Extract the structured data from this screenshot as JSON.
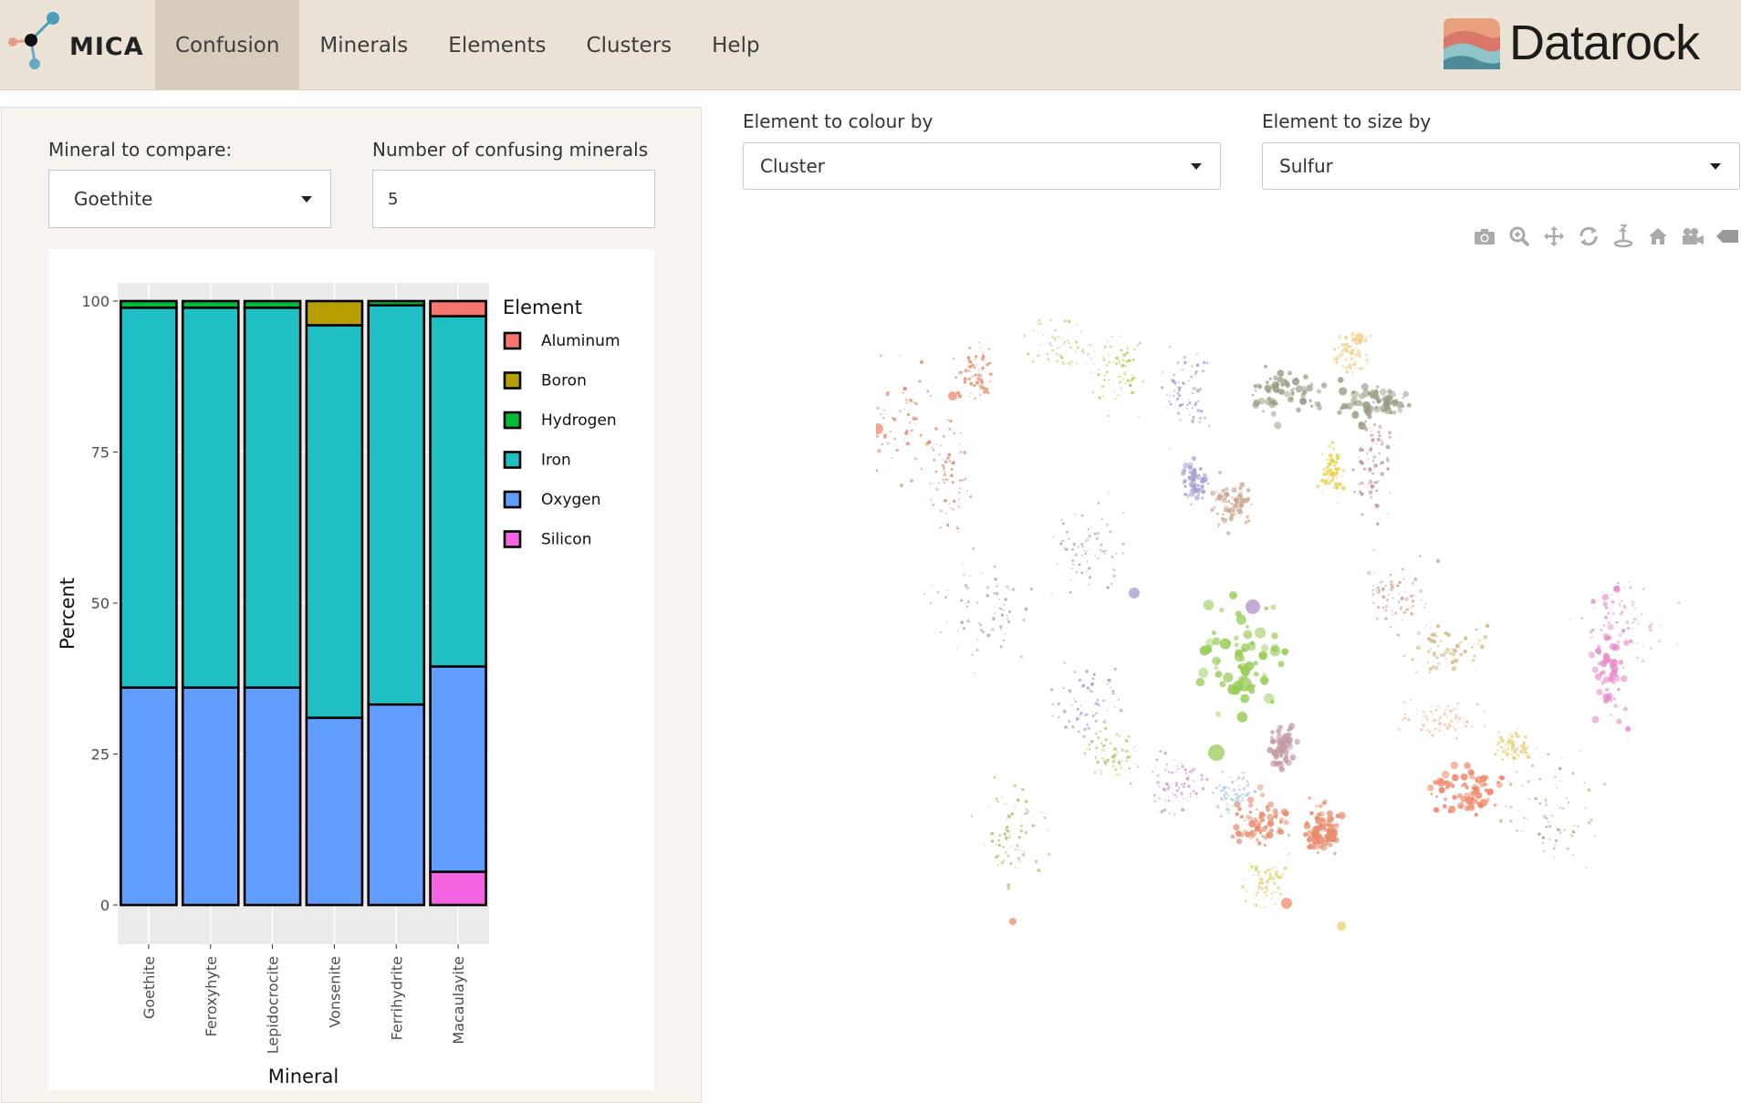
{
  "app": {
    "name": "MICA",
    "brand": "Datarock"
  },
  "nav": {
    "items": [
      {
        "label": "Confusion",
        "active": true
      },
      {
        "label": "Minerals",
        "active": false
      },
      {
        "label": "Elements",
        "active": false
      },
      {
        "label": "Clusters",
        "active": false
      },
      {
        "label": "Help",
        "active": false
      }
    ]
  },
  "sidebar": {
    "mineral_label": "Mineral to compare:",
    "mineral_value": "Goethite",
    "count_label": "Number of confusing minerals",
    "count_value": "5"
  },
  "controls": {
    "colour_label": "Element to colour by",
    "colour_value": "Cluster",
    "size_label": "Element to size by",
    "size_value": "Sulfur"
  },
  "modebar": {
    "icons": [
      "camera-icon",
      "zoom-icon",
      "pan-icon",
      "orbit-icon",
      "turntable-icon",
      "home-icon",
      "video-icon",
      "tag-icon"
    ]
  },
  "chart_data": {
    "type": "bar",
    "stacked": true,
    "xlabel": "Mineral",
    "ylabel": "Percent",
    "ylim": [
      0,
      100
    ],
    "yticks": [
      "0",
      "25",
      "50",
      "75",
      "100"
    ],
    "legend_title": "Element",
    "legend_placement": "right",
    "categories": [
      "Goethite",
      "Feroxyhyte",
      "Lepidocrocite",
      "Vonsenite",
      "Ferrihydrite",
      "Macaulayite"
    ],
    "series": [
      {
        "name": "Silicon",
        "color": "#f564e3",
        "values": [
          0,
          0,
          0,
          0,
          0,
          5.5
        ]
      },
      {
        "name": "Oxygen",
        "color": "#619cff",
        "values": [
          36,
          36,
          36,
          31,
          33.2,
          34
        ]
      },
      {
        "name": "Iron",
        "color": "#1fbfc3",
        "values": [
          62.9,
          62.9,
          62.9,
          65,
          66.1,
          58
        ]
      },
      {
        "name": "Hydrogen",
        "color": "#00ba38",
        "values": [
          1.1,
          1.1,
          1.1,
          0,
          0.7,
          0
        ]
      },
      {
        "name": "Boron",
        "color": "#b79f00",
        "values": [
          0,
          0,
          0,
          4,
          0,
          0
        ]
      },
      {
        "name": "Aluminum",
        "color": "#f8766d",
        "values": [
          0,
          0,
          0,
          0,
          0,
          2.5
        ]
      }
    ],
    "legend_order": [
      "Aluminum",
      "Boron",
      "Hydrogen",
      "Iron",
      "Oxygen",
      "Silicon"
    ],
    "grid": true
  }
}
